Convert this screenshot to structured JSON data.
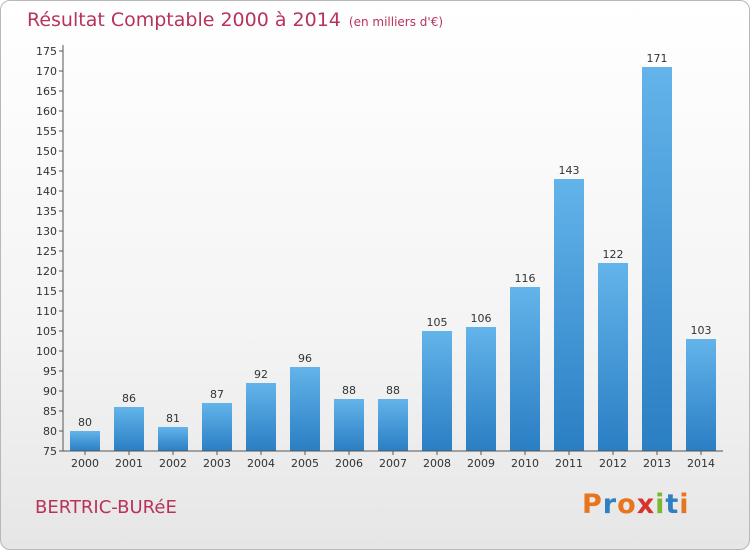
{
  "header": {
    "title": "Résultat Comptable 2000 à 2014",
    "subtitle": "(en milliers d'€)"
  },
  "footer": {
    "town": "BERTRIC-BURéE",
    "logo": "Proxiti"
  },
  "colors": {
    "title": "#b8335a",
    "bar_light": "#63b4ea",
    "bar_dark": "#2a7ec3",
    "logo_letters": [
      "#e8741d",
      "#2f7fc1",
      "#e8741d",
      "#d6332f",
      "#7cb82f",
      "#2f7fc1",
      "#e8741d"
    ]
  },
  "chart_data": {
    "type": "bar",
    "title": "Résultat Comptable 2000 à 2014",
    "xlabel": "",
    "ylabel": "(en milliers d'€)",
    "categories": [
      "2000",
      "2001",
      "2002",
      "2003",
      "2004",
      "2005",
      "2006",
      "2007",
      "2008",
      "2009",
      "2010",
      "2011",
      "2012",
      "2013",
      "2014"
    ],
    "values": [
      80,
      86,
      81,
      87,
      92,
      96,
      88,
      88,
      105,
      106,
      116,
      143,
      122,
      171,
      103
    ],
    "ylim": [
      75,
      175
    ],
    "ytick_step": 5,
    "grid": false,
    "legend": "none"
  }
}
